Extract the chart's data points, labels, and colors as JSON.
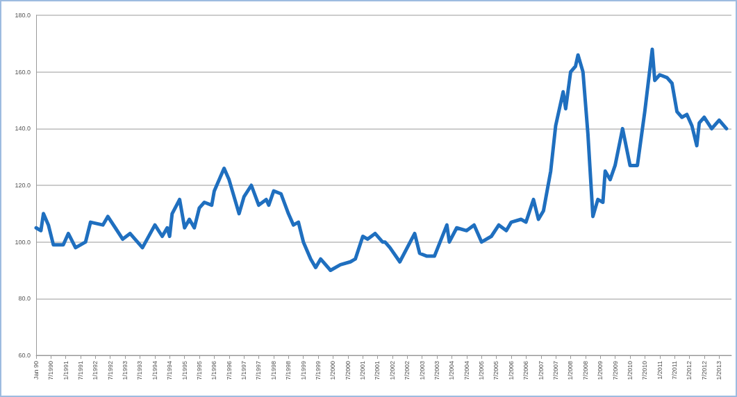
{
  "chart_data": {
    "type": "line",
    "x": [
      "1990-01",
      "1990-03",
      "1990-04",
      "1990-06",
      "1990-08",
      "1990-12",
      "1991-02",
      "1991-05",
      "1991-09",
      "1991-11",
      "1992-04",
      "1992-06",
      "1992-09",
      "1992-12",
      "1993-03",
      "1993-08",
      "1994-01",
      "1994-04",
      "1994-06",
      "1994-07",
      "1994-08",
      "1994-11",
      "1995-01",
      "1995-03",
      "1995-05",
      "1995-07",
      "1995-09",
      "1995-12",
      "1996-01",
      "1996-05",
      "1996-07",
      "1996-11",
      "1997-01",
      "1997-04",
      "1997-07",
      "1997-10",
      "1997-11",
      "1998-01",
      "1998-04",
      "1998-07",
      "1998-09",
      "1998-11",
      "1999-01",
      "1999-04",
      "1999-06",
      "1999-08",
      "1999-12",
      "2000-04",
      "2000-08",
      "2000-10",
      "2001-01",
      "2001-03",
      "2001-06",
      "2001-09",
      "2001-10",
      "2001-12",
      "2002-04",
      "2002-10",
      "2002-12",
      "2003-03",
      "2003-06",
      "2003-11",
      "2003-12",
      "2004-03",
      "2004-07",
      "2004-10",
      "2005-01",
      "2005-05",
      "2005-08",
      "2005-11",
      "2006-01",
      "2006-05",
      "2006-07",
      "2006-10",
      "2006-12",
      "2007-02",
      "2007-05",
      "2007-07",
      "2007-10",
      "2007-11",
      "2008-01",
      "2008-03",
      "2008-04",
      "2008-06",
      "2008-08",
      "2008-10",
      "2008-12",
      "2009-02",
      "2009-03",
      "2009-05",
      "2009-07",
      "2009-10",
      "2010-01",
      "2010-04",
      "2010-07",
      "2010-10",
      "2010-11",
      "2011-01",
      "2011-04",
      "2011-06",
      "2011-08",
      "2011-10",
      "2011-12",
      "2012-02",
      "2012-04",
      "2012-05",
      "2012-07",
      "2012-10",
      "2013-01",
      "2013-04"
    ],
    "series": [
      {
        "color": "#1f6fbf",
        "values": [
          105,
          104,
          110,
          106,
          99,
          99,
          103,
          98,
          100,
          107,
          106,
          109,
          105,
          101,
          103,
          98,
          106,
          102,
          105,
          102,
          110,
          115,
          105,
          108,
          105,
          112,
          114,
          113,
          118,
          126,
          122,
          110,
          116,
          120,
          113,
          115,
          113,
          118,
          117,
          110,
          106,
          107,
          100,
          94,
          91,
          94,
          90,
          92,
          93,
          94,
          102,
          101,
          103,
          100,
          100,
          98,
          93,
          103,
          96,
          95,
          95,
          106,
          100,
          105,
          104,
          106,
          100,
          102,
          106,
          104,
          107,
          108,
          107,
          115,
          108,
          111,
          125,
          141,
          153,
          147,
          160,
          162,
          166,
          160,
          138,
          109,
          115,
          114,
          125,
          122,
          127,
          140,
          127,
          127,
          146,
          168,
          157,
          159,
          158,
          156,
          146,
          144,
          145,
          141,
          134,
          142,
          144,
          140,
          143,
          140
        ]
      }
    ],
    "xlim": [
      "1990-01",
      "2013-06"
    ],
    "xticks": [
      {
        "value": "1990-01",
        "label": "Jan 90"
      },
      {
        "value": "1990-07",
        "label": "7/1990"
      },
      {
        "value": "1991-01",
        "label": "1/1991"
      },
      {
        "value": "1991-07",
        "label": "7/1991"
      },
      {
        "value": "1992-01",
        "label": "1/1992"
      },
      {
        "value": "1992-07",
        "label": "7/1992"
      },
      {
        "value": "1993-01",
        "label": "1/1993"
      },
      {
        "value": "1993-07",
        "label": "7/1993"
      },
      {
        "value": "1994-01",
        "label": "1/1994"
      },
      {
        "value": "1994-07",
        "label": "7/1994"
      },
      {
        "value": "1995-01",
        "label": "1/1995"
      },
      {
        "value": "1995-07",
        "label": "7/1995"
      },
      {
        "value": "1996-01",
        "label": "1/1996"
      },
      {
        "value": "1996-07",
        "label": "7/1996"
      },
      {
        "value": "1997-01",
        "label": "1/1997"
      },
      {
        "value": "1997-07",
        "label": "7/1997"
      },
      {
        "value": "1998-01",
        "label": "1/1998"
      },
      {
        "value": "1998-07",
        "label": "7/1998"
      },
      {
        "value": "1999-01",
        "label": "1/1999"
      },
      {
        "value": "1999-07",
        "label": "7/1999"
      },
      {
        "value": "2000-01",
        "label": "1/2000"
      },
      {
        "value": "2000-07",
        "label": "7/2000"
      },
      {
        "value": "2001-01",
        "label": "1/2001"
      },
      {
        "value": "2001-07",
        "label": "7/2001"
      },
      {
        "value": "2002-01",
        "label": "1/2002"
      },
      {
        "value": "2002-07",
        "label": "7/2002"
      },
      {
        "value": "2003-01",
        "label": "1/2003"
      },
      {
        "value": "2003-07",
        "label": "7/2003"
      },
      {
        "value": "2004-01",
        "label": "1/2004"
      },
      {
        "value": "2004-07",
        "label": "7/2004"
      },
      {
        "value": "2005-01",
        "label": "1/2005"
      },
      {
        "value": "2005-07",
        "label": "7/2005"
      },
      {
        "value": "2006-01",
        "label": "1/2006"
      },
      {
        "value": "2006-07",
        "label": "7/2006"
      },
      {
        "value": "2007-01",
        "label": "1/2007"
      },
      {
        "value": "2007-07",
        "label": "7/2007"
      },
      {
        "value": "2008-01",
        "label": "1/2008"
      },
      {
        "value": "2008-07",
        "label": "7/2008"
      },
      {
        "value": "2009-01",
        "label": "1/2009"
      },
      {
        "value": "2009-07",
        "label": "7/2009"
      },
      {
        "value": "2010-01",
        "label": "1/2010"
      },
      {
        "value": "2010-07",
        "label": "7/2010"
      },
      {
        "value": "2011-01",
        "label": "1/2011"
      },
      {
        "value": "2011-07",
        "label": "7/2011"
      },
      {
        "value": "2012-01",
        "label": "1/2012"
      },
      {
        "value": "2012-07",
        "label": "7/2012"
      },
      {
        "value": "2013-01",
        "label": "1/2013"
      }
    ],
    "ylim": [
      60,
      180
    ],
    "yticks": [
      {
        "value": 60,
        "label": "60.0"
      },
      {
        "value": 80,
        "label": "80.0"
      },
      {
        "value": 100,
        "label": "100.0"
      },
      {
        "value": 120,
        "label": "120.0"
      },
      {
        "value": 140,
        "label": "140.0"
      },
      {
        "value": 160,
        "label": "160.0"
      },
      {
        "value": 180,
        "label": "180.0"
      }
    ],
    "grid": "y",
    "marker": "none",
    "line_style": "solid"
  }
}
